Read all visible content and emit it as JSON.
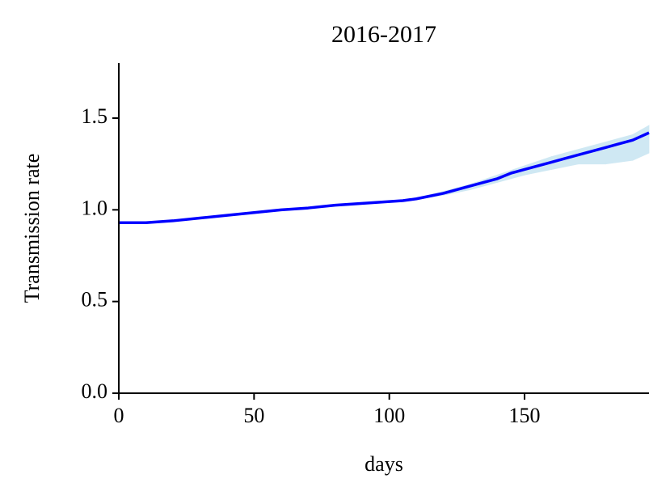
{
  "chart_data": {
    "type": "line",
    "title": "2016-2017",
    "xlabel": "days",
    "ylabel": "Transmission rate",
    "x": [
      0,
      10,
      20,
      30,
      40,
      50,
      60,
      70,
      80,
      90,
      100,
      105,
      110,
      120,
      130,
      140,
      145,
      150,
      160,
      165,
      170,
      180,
      190,
      196
    ],
    "series": [
      {
        "color": "#0000ff",
        "values": [
          0.93,
          0.93,
          0.94,
          0.955,
          0.97,
          0.985,
          1.0,
          1.01,
          1.025,
          1.035,
          1.045,
          1.05,
          1.06,
          1.09,
          1.13,
          1.17,
          1.2,
          1.22,
          1.26,
          1.28,
          1.3,
          1.34,
          1.38,
          1.42
        ]
      }
    ],
    "band": {
      "color": "#cfe8f3",
      "lower": [
        0.93,
        0.93,
        0.94,
        0.955,
        0.97,
        0.985,
        1.0,
        1.01,
        1.025,
        1.035,
        1.04,
        1.045,
        1.055,
        1.08,
        1.11,
        1.15,
        1.17,
        1.19,
        1.22,
        1.235,
        1.25,
        1.25,
        1.27,
        1.31
      ],
      "upper": [
        0.93,
        0.93,
        0.94,
        0.955,
        0.97,
        0.985,
        1.0,
        1.01,
        1.025,
        1.035,
        1.05,
        1.055,
        1.065,
        1.1,
        1.14,
        1.19,
        1.215,
        1.24,
        1.29,
        1.31,
        1.33,
        1.37,
        1.41,
        1.46
      ]
    },
    "xlim": [
      0,
      196
    ],
    "ylim": [
      0,
      1.8
    ],
    "xticks": [
      0,
      50,
      100,
      150
    ],
    "yticks": [
      {
        "value": 0,
        "label": "0.0"
      },
      0.5,
      {
        "value": 1,
        "label": "1.0"
      },
      1.5
    ],
    "grid": false
  }
}
